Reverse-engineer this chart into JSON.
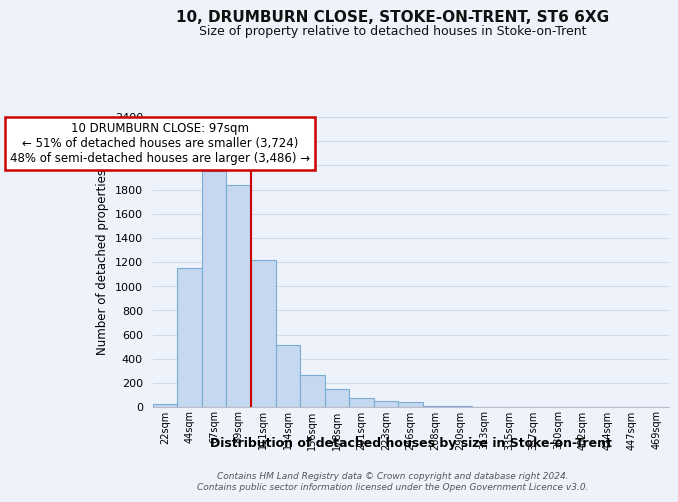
{
  "title": "10, DRUMBURN CLOSE, STOKE-ON-TRENT, ST6 6XG",
  "subtitle": "Size of property relative to detached houses in Stoke-on-Trent",
  "xlabel": "Distribution of detached houses by size in Stoke-on-Trent",
  "ylabel": "Number of detached properties",
  "bar_color": "#c5d8ef",
  "bar_edge_color": "#7aadd4",
  "bin_labels": [
    "22sqm",
    "44sqm",
    "67sqm",
    "89sqm",
    "111sqm",
    "134sqm",
    "156sqm",
    "178sqm",
    "201sqm",
    "223sqm",
    "246sqm",
    "268sqm",
    "290sqm",
    "313sqm",
    "335sqm",
    "357sqm",
    "380sqm",
    "402sqm",
    "424sqm",
    "447sqm",
    "469sqm"
  ],
  "bin_values": [
    25,
    1150,
    1950,
    1840,
    1220,
    510,
    265,
    150,
    75,
    50,
    40,
    10,
    5,
    3,
    2,
    2,
    1,
    1,
    1,
    0,
    0
  ],
  "ylim": [
    0,
    2400
  ],
  "yticks": [
    0,
    200,
    400,
    600,
    800,
    1000,
    1200,
    1400,
    1600,
    1800,
    2000,
    2200,
    2400
  ],
  "property_line_bin_index": 3,
  "annotation_title": "10 DRUMBURN CLOSE: 97sqm",
  "annotation_line1": "← 51% of detached houses are smaller (3,724)",
  "annotation_line2": "48% of semi-detached houses are larger (3,486) →",
  "annotation_box_color": "#ffffff",
  "annotation_box_edge_color": "#cc0000",
  "property_line_color": "#cc0000",
  "footer1": "Contains HM Land Registry data © Crown copyright and database right 2024.",
  "footer2": "Contains public sector information licensed under the Open Government Licence v3.0.",
  "grid_color": "#d0daea",
  "background_color": "#eef2fa"
}
